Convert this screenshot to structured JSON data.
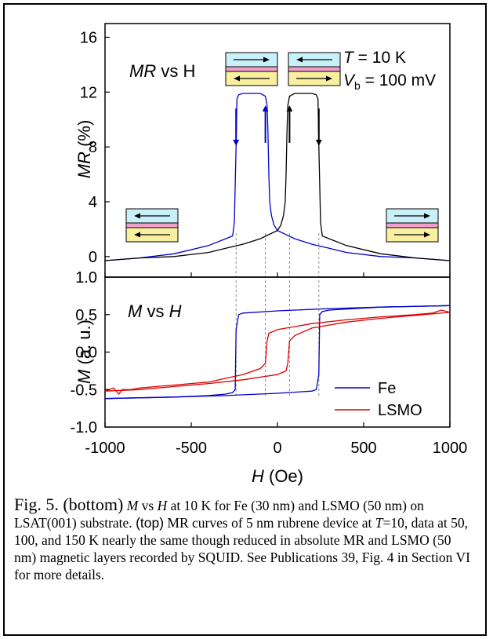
{
  "chart_data": [
    {
      "type": "line",
      "panel": "top",
      "label_italic": "MR",
      "label_rest": " vs H",
      "ylabel_italic": "MR",
      "ylabel_rest": " (%)",
      "ylim": [
        -1.5,
        17
      ],
      "yticks": [
        0,
        4,
        8,
        12,
        16
      ],
      "xlim": [
        -1000,
        1000
      ],
      "annotations": {
        "T": "= 10 K",
        "Vb": "= 100 mV"
      },
      "series": [
        {
          "name": "",
          "color": "#0000cc",
          "x": [
            -1000,
            -800,
            -600,
            -400,
            -300,
            -260,
            -250,
            -240,
            -235,
            -225,
            -200,
            -150,
            -100,
            -70,
            -60,
            -55,
            -50,
            -45,
            -35,
            -20,
            0,
            50,
            100,
            200,
            300,
            400,
            600,
            800,
            1000
          ],
          "y": [
            -0.3,
            -0.1,
            0.2,
            0.8,
            1.3,
            1.5,
            2.5,
            8,
            11.5,
            11.8,
            11.9,
            11.9,
            11.9,
            11.7,
            11,
            9,
            6,
            4,
            3,
            2.3,
            1.9,
            1.6,
            1.3,
            0.9,
            0.6,
            0.3,
            0.0,
            -0.1,
            -0.3
          ]
        },
        {
          "name": "",
          "color": "#000000",
          "x": [
            -1000,
            -800,
            -600,
            -400,
            -300,
            -200,
            -100,
            -50,
            0,
            20,
            35,
            45,
            50,
            55,
            60,
            70,
            100,
            150,
            200,
            225,
            235,
            240,
            250,
            260,
            300,
            400,
            600,
            800,
            1000
          ],
          "y": [
            -0.3,
            -0.1,
            0.0,
            0.3,
            0.6,
            0.9,
            1.3,
            1.6,
            1.9,
            2.3,
            3,
            4,
            6,
            9,
            11,
            11.7,
            11.9,
            11.9,
            11.9,
            11.8,
            11.5,
            8,
            2.5,
            1.5,
            1.3,
            0.8,
            0.2,
            -0.1,
            -0.3
          ]
        }
      ],
      "arrows": [
        {
          "x": -240,
          "y1": 10.8,
          "y2": 8.3,
          "color": "#0000cc"
        },
        {
          "x": -70,
          "y1": 8.3,
          "y2": 10.8,
          "color": "#0000cc"
        },
        {
          "x": 70,
          "y1": 8.3,
          "y2": 10.8,
          "color": "#000000"
        },
        {
          "x": 240,
          "y1": 10.8,
          "y2": 8.3,
          "color": "#000000"
        }
      ],
      "dashed_x": [
        -240,
        -70,
        70,
        240
      ],
      "spin_icons": [
        {
          "pos": "left",
          "top": "left",
          "bottom": "left"
        },
        {
          "pos": "top-a",
          "top": "right",
          "bottom": "left"
        },
        {
          "pos": "top-b",
          "top": "left",
          "bottom": "right"
        },
        {
          "pos": "right",
          "top": "right",
          "bottom": "right"
        }
      ]
    },
    {
      "type": "line",
      "panel": "bottom",
      "label_italic1": "M",
      "label_mid": " vs ",
      "label_italic2": "H",
      "ylabel_italic": "M",
      "ylabel_rest": " (a. u.)",
      "xlabel_italic": "H",
      "xlabel_rest": " (Oe)",
      "xlim": [
        -1000,
        1000
      ],
      "ylim": [
        -1.0,
        1.0
      ],
      "xticks": [
        -1000,
        -500,
        0,
        500,
        1000
      ],
      "xtick_labels": [
        "-1000",
        "-500",
        "0",
        "500",
        "1000"
      ],
      "yticks": [
        -1.0,
        -0.5,
        0.0,
        0.5,
        1.0
      ],
      "ytick_labels": [
        "-1.0",
        "-0.5",
        "0.0",
        "0.5",
        "1.0"
      ],
      "legend_position": "bottom-right",
      "series": [
        {
          "name": "Fe",
          "color": "#0000cc",
          "loops": [
            {
              "x": [
                -1000,
                -600,
                -400,
                -300,
                -260,
                -245,
                -240,
                -225,
                -200,
                0,
                300,
                600,
                1000
              ],
              "y": [
                -0.62,
                -0.6,
                -0.58,
                -0.56,
                -0.54,
                -0.5,
                0.3,
                0.5,
                0.52,
                0.55,
                0.58,
                0.6,
                0.62
              ]
            },
            {
              "x": [
                1000,
                600,
                300,
                260,
                245,
                240,
                225,
                200,
                0,
                -300,
                -600,
                -1000
              ],
              "y": [
                0.62,
                0.6,
                0.56,
                0.54,
                0.5,
                -0.3,
                -0.5,
                -0.52,
                -0.55,
                -0.58,
                -0.6,
                -0.62
              ]
            }
          ]
        },
        {
          "name": "LSMO",
          "color": "#dd0000",
          "loops": [
            {
              "x": [
                -1000,
                -950,
                -920,
                -900,
                -850,
                -800,
                -700,
                -600,
                -400,
                -200,
                -100,
                -70,
                -60,
                -50,
                0,
                200,
                400,
                600,
                800,
                900,
                950,
                1000
              ],
              "y": [
                -0.52,
                -0.48,
                -0.56,
                -0.5,
                -0.5,
                -0.48,
                -0.46,
                -0.44,
                -0.4,
                -0.3,
                -0.22,
                -0.15,
                0.15,
                0.25,
                0.3,
                0.38,
                0.43,
                0.47,
                0.5,
                0.52,
                0.56,
                0.53
              ]
            },
            {
              "x": [
                1000,
                800,
                600,
                400,
                200,
                100,
                70,
                60,
                50,
                0,
                -200,
                -400,
                -600,
                -800,
                -1000
              ],
              "y": [
                0.53,
                0.49,
                0.45,
                0.4,
                0.32,
                0.22,
                0.15,
                -0.15,
                -0.25,
                -0.3,
                -0.37,
                -0.42,
                -0.46,
                -0.5,
                -0.52
              ]
            }
          ]
        }
      ]
    }
  ],
  "caption": {
    "lead": "Fig. 5. (bottom)",
    "p1": "M",
    "p2": " vs ",
    "p3": "H",
    "p4": " at 10 K for Fe (30 nm) and LSMO (50 nm) on LSAT(001) substrate. ",
    "p5": "(top)",
    "p6": " MR curves of 5 nm rubrene device at ",
    "p7": "T",
    "p8": "=10, data at 50, 100, and 150 K nearly the same though reduced in absolute MR and LSMO (50 nm) magnetic layers recorded by SQUID. See Publications 39, Fig. 4 in Section VI for more details."
  }
}
